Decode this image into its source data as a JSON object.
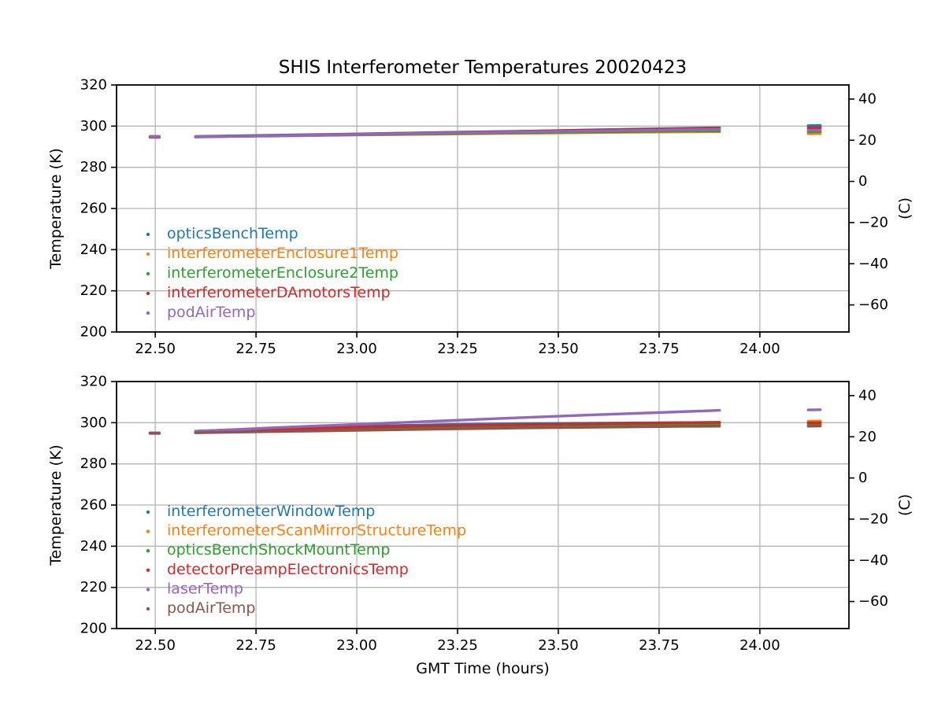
{
  "figure": {
    "background": "#ffffff",
    "frame_color": "#000000",
    "grid_color": "#b5b5b5",
    "tick_label_color": "#000000"
  },
  "chart_data": [
    {
      "type": "scatter",
      "title": "SHIS Interferometer Temperatures 20020423",
      "xlabel": "",
      "ylabel": "Temperature (K)",
      "y2label": "(C)",
      "xlim": [
        22.404,
        24.221
      ],
      "ylim": [
        200,
        320
      ],
      "grid": true,
      "legend_position": "lower-left-inside",
      "xticks": [
        {
          "v": 22.5,
          "label": "22.50"
        },
        {
          "v": 22.75,
          "label": "22.75"
        },
        {
          "v": 23.0,
          "label": "23.00"
        },
        {
          "v": 23.25,
          "label": "23.25"
        },
        {
          "v": 23.5,
          "label": "23.50"
        },
        {
          "v": 23.75,
          "label": "23.75"
        },
        {
          "v": 24.0,
          "label": "24.00"
        }
      ],
      "yticks": [
        {
          "v": 200,
          "label": "200"
        },
        {
          "v": 220,
          "label": "220"
        },
        {
          "v": 240,
          "label": "240"
        },
        {
          "v": 260,
          "label": "260"
        },
        {
          "v": 280,
          "label": "280"
        },
        {
          "v": 300,
          "label": "300"
        },
        {
          "v": 320,
          "label": "320"
        }
      ],
      "y2ticks": [
        {
          "v": 313.15,
          "label": "40"
        },
        {
          "v": 293.15,
          "label": "20"
        },
        {
          "v": 273.15,
          "label": "0"
        },
        {
          "v": 253.15,
          "label": "−20"
        },
        {
          "v": 233.15,
          "label": "−40"
        },
        {
          "v": 213.15,
          "label": "−60"
        }
      ],
      "series": [
        {
          "name": "opticsBenchTemp",
          "color": "#1f77b4",
          "segments": [
            [
              [
                22.487,
                294.95
              ],
              [
                22.51,
                294.95
              ]
            ],
            [
              [
                22.6,
                295.0
              ],
              [
                22.8,
                295.6
              ],
              [
                23.0,
                296.2
              ],
              [
                23.2,
                296.9
              ],
              [
                23.4,
                297.5
              ],
              [
                23.6,
                298.2
              ],
              [
                23.8,
                298.9
              ],
              [
                23.9,
                299.2
              ]
            ],
            [
              [
                24.12,
                300.2
              ],
              [
                24.15,
                300.3
              ]
            ]
          ]
        },
        {
          "name": "interferometerEnclosure1Temp",
          "color": "#ff7f0e",
          "segments": [
            [
              [
                22.487,
                294.75
              ],
              [
                22.51,
                294.75
              ]
            ],
            [
              [
                22.6,
                294.8
              ],
              [
                22.8,
                295.2
              ],
              [
                23.0,
                295.7
              ],
              [
                23.2,
                296.1
              ],
              [
                23.4,
                296.5
              ],
              [
                23.6,
                296.9
              ],
              [
                23.8,
                297.2
              ],
              [
                23.9,
                297.3
              ]
            ],
            [
              [
                24.12,
                296.3
              ],
              [
                24.15,
                296.4
              ]
            ]
          ]
        },
        {
          "name": "interferometerEnclosure2Temp",
          "color": "#2ca02c",
          "segments": [
            [
              [
                22.487,
                295.0
              ],
              [
                22.51,
                295.0
              ]
            ],
            [
              [
                22.6,
                294.9
              ],
              [
                22.8,
                295.3
              ],
              [
                23.0,
                295.8
              ],
              [
                23.2,
                296.3
              ],
              [
                23.4,
                296.8
              ],
              [
                23.6,
                297.2
              ],
              [
                23.8,
                297.6
              ],
              [
                23.9,
                297.7
              ]
            ],
            [
              [
                24.12,
                297.2
              ],
              [
                24.15,
                297.3
              ]
            ]
          ]
        },
        {
          "name": "interferometerDAmotorsTemp",
          "color": "#d62728",
          "segments": [
            [
              [
                22.487,
                294.6
              ],
              [
                22.51,
                294.6
              ]
            ],
            [
              [
                22.6,
                294.7
              ],
              [
                22.8,
                295.4
              ],
              [
                23.0,
                296.1
              ],
              [
                23.2,
                296.8
              ],
              [
                23.4,
                297.4
              ],
              [
                23.6,
                298.1
              ],
              [
                23.8,
                298.7
              ],
              [
                23.9,
                299.0
              ]
            ],
            [
              [
                24.12,
                299.1
              ],
              [
                24.15,
                299.2
              ]
            ]
          ]
        },
        {
          "name": "podAirTemp",
          "color": "#9467bd",
          "segments": [
            [
              [
                22.487,
                294.85
              ],
              [
                22.51,
                294.85
              ]
            ],
            [
              [
                22.6,
                294.8
              ],
              [
                22.8,
                295.4
              ],
              [
                23.0,
                296.0
              ],
              [
                23.2,
                296.6
              ],
              [
                23.4,
                297.2
              ],
              [
                23.6,
                297.7
              ],
              [
                23.8,
                298.2
              ],
              [
                23.9,
                298.4
              ]
            ],
            [
              [
                24.12,
                297.9
              ],
              [
                24.15,
                298.0
              ]
            ]
          ]
        }
      ]
    },
    {
      "type": "scatter",
      "title": "",
      "xlabel": "GMT Time (hours)",
      "ylabel": "Temperature (K)",
      "y2label": "(C)",
      "xlim": [
        22.404,
        24.221
      ],
      "ylim": [
        200,
        320
      ],
      "grid": true,
      "legend_position": "lower-left-inside",
      "xticks": [
        {
          "v": 22.5,
          "label": "22.50"
        },
        {
          "v": 22.75,
          "label": "22.75"
        },
        {
          "v": 23.0,
          "label": "23.00"
        },
        {
          "v": 23.25,
          "label": "23.25"
        },
        {
          "v": 23.5,
          "label": "23.50"
        },
        {
          "v": 23.75,
          "label": "23.75"
        },
        {
          "v": 24.0,
          "label": "24.00"
        }
      ],
      "yticks": [
        {
          "v": 200,
          "label": "200"
        },
        {
          "v": 220,
          "label": "220"
        },
        {
          "v": 240,
          "label": "240"
        },
        {
          "v": 260,
          "label": "260"
        },
        {
          "v": 280,
          "label": "280"
        },
        {
          "v": 300,
          "label": "300"
        },
        {
          "v": 320,
          "label": "320"
        }
      ],
      "y2ticks": [
        {
          "v": 313.15,
          "label": "40"
        },
        {
          "v": 293.15,
          "label": "20"
        },
        {
          "v": 273.15,
          "label": "0"
        },
        {
          "v": 253.15,
          "label": "−20"
        },
        {
          "v": 233.15,
          "label": "−40"
        },
        {
          "v": 213.15,
          "label": "−60"
        }
      ],
      "series": [
        {
          "name": "interferometerWindowTemp",
          "color": "#1f77b4",
          "segments": [
            [
              [
                22.487,
                295.0
              ],
              [
                22.51,
                295.0
              ]
            ],
            [
              [
                22.6,
                295.9
              ],
              [
                22.7,
                296.6
              ],
              [
                22.8,
                297.3
              ],
              [
                23.0,
                298.3
              ],
              [
                23.2,
                299.0
              ],
              [
                23.4,
                299.5
              ],
              [
                23.6,
                299.8
              ],
              [
                23.8,
                300.0
              ],
              [
                23.9,
                300.1
              ]
            ],
            [
              [
                24.12,
                300.1
              ],
              [
                24.15,
                300.1
              ]
            ]
          ]
        },
        {
          "name": "interferometerScanMirrorStructureTemp",
          "color": "#ff7f0e",
          "segments": [
            [
              [
                22.487,
                294.9
              ],
              [
                22.51,
                294.9
              ]
            ],
            [
              [
                22.6,
                295.5
              ],
              [
                22.8,
                296.3
              ],
              [
                23.0,
                297.1
              ],
              [
                23.2,
                297.8
              ],
              [
                23.4,
                298.4
              ],
              [
                23.6,
                299.0
              ],
              [
                23.8,
                299.5
              ],
              [
                23.9,
                299.7
              ]
            ],
            [
              [
                24.12,
                300.7
              ],
              [
                24.15,
                300.8
              ]
            ]
          ]
        },
        {
          "name": "opticsBenchShockMountTemp",
          "color": "#2ca02c",
          "segments": [
            [
              [
                22.487,
                295.0
              ],
              [
                22.51,
                295.0
              ]
            ],
            [
              [
                22.6,
                295.3
              ],
              [
                22.8,
                296.0
              ],
              [
                23.0,
                296.7
              ],
              [
                23.2,
                297.4
              ],
              [
                23.4,
                297.9
              ],
              [
                23.6,
                298.4
              ],
              [
                23.8,
                298.8
              ],
              [
                23.9,
                299.0
              ]
            ],
            [
              [
                24.12,
                299.0
              ],
              [
                24.15,
                299.1
              ]
            ]
          ]
        },
        {
          "name": "detectorPreampElectronicsTemp",
          "color": "#d62728",
          "segments": [
            [
              [
                22.487,
                294.8
              ],
              [
                22.51,
                294.8
              ]
            ],
            [
              [
                22.6,
                295.6
              ],
              [
                22.8,
                296.9
              ],
              [
                23.0,
                297.8
              ],
              [
                23.2,
                298.5
              ],
              [
                23.4,
                299.0
              ],
              [
                23.6,
                299.5
              ],
              [
                23.8,
                300.0
              ],
              [
                23.9,
                300.2
              ]
            ],
            [
              [
                24.12,
                299.9
              ],
              [
                24.15,
                300.0
              ]
            ]
          ]
        },
        {
          "name": "laserTemp",
          "color": "#9467bd",
          "segments": [
            [
              [
                22.487,
                295.1
              ],
              [
                22.51,
                295.1
              ]
            ],
            [
              [
                22.6,
                295.8
              ],
              [
                22.7,
                296.7
              ],
              [
                22.8,
                297.6
              ],
              [
                23.0,
                299.2
              ],
              [
                23.2,
                300.8
              ],
              [
                23.4,
                302.4
              ],
              [
                23.6,
                303.9
              ],
              [
                23.8,
                305.3
              ],
              [
                23.9,
                306.0
              ]
            ],
            [
              [
                24.12,
                306.2
              ],
              [
                24.15,
                306.3
              ]
            ]
          ]
        },
        {
          "name": "podAirTemp",
          "color": "#8c564b",
          "segments": [
            [
              [
                22.487,
                294.85
              ],
              [
                22.51,
                294.85
              ]
            ],
            [
              [
                22.6,
                295.1
              ],
              [
                22.8,
                295.7
              ],
              [
                23.0,
                296.3
              ],
              [
                23.2,
                296.9
              ],
              [
                23.4,
                297.4
              ],
              [
                23.6,
                297.8
              ],
              [
                23.8,
                298.2
              ],
              [
                23.9,
                298.3
              ]
            ],
            [
              [
                24.12,
                298.3
              ],
              [
                24.15,
                298.4
              ]
            ]
          ]
        }
      ]
    }
  ]
}
